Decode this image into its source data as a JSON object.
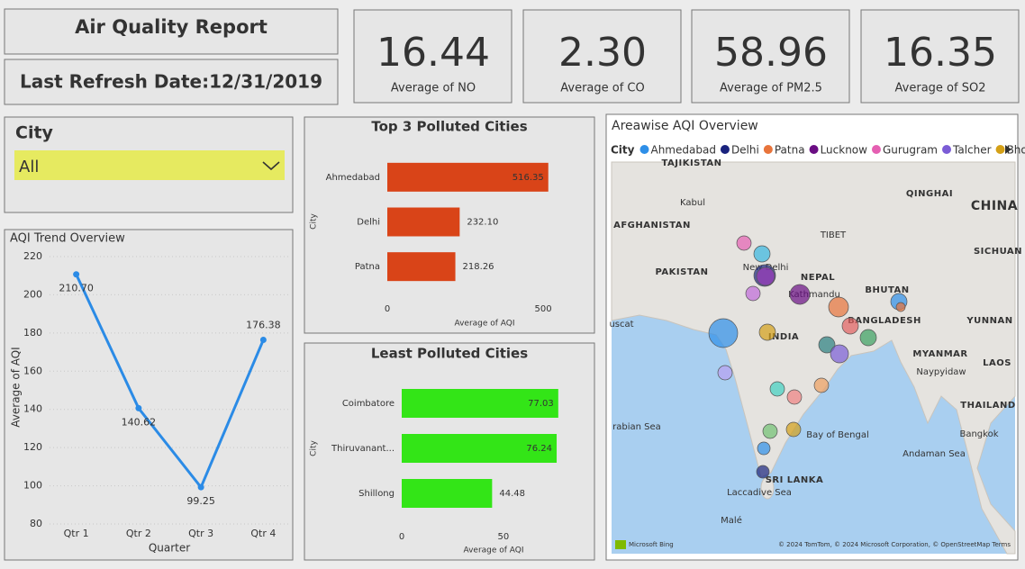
{
  "header": {
    "title": "Air Quality Report",
    "refresh": "Last Refresh Date:12/31/2019"
  },
  "kpis": [
    {
      "value": "16.44",
      "label": "Average of NO"
    },
    {
      "value": "2.30",
      "label": "Average of CO"
    },
    {
      "value": "58.96",
      "label": "Average of PM2.5"
    },
    {
      "value": "16.35",
      "label": "Average of SO2"
    }
  ],
  "slicer": {
    "title": "City",
    "selection": "All"
  },
  "chart_data": [
    {
      "type": "line",
      "title": "AQI Trend Overview",
      "x_label": "Quarter",
      "y_label": "Average of AQI",
      "categories": [
        "Qtr 1",
        "Qtr 2",
        "Qtr 3",
        "Qtr 4"
      ],
      "values": [
        210.7,
        140.62,
        99.25,
        176.38
      ],
      "value_labels": [
        "210.70",
        "140.62",
        "99.25",
        "176.38"
      ],
      "color": "#2b8be6",
      "ylim": [
        80,
        220
      ],
      "yticks": [
        80,
        100,
        120,
        140,
        160,
        180,
        200,
        220
      ],
      "grid": true
    },
    {
      "type": "hbar",
      "title": "Top 3 Polluted Cities",
      "x_label": "Average of AQI",
      "y_label": "City",
      "categories": [
        "Ahmedabad",
        "Delhi",
        "Patna"
      ],
      "values": [
        516.35,
        232.1,
        218.26
      ],
      "value_labels": [
        "516.35",
        "232.10",
        "218.26"
      ],
      "color": "#d94418",
      "xlim": [
        0,
        520
      ],
      "xticks": [
        0,
        500
      ],
      "grid": false
    },
    {
      "type": "hbar",
      "title": "Least Polluted Cities",
      "x_label": "Average of AQI",
      "y_label": "City",
      "categories": [
        "Coimbatore",
        "Thiruvanant...",
        "Shillong"
      ],
      "values": [
        77.03,
        76.24,
        44.48
      ],
      "xlim": [
        0,
        78
      ],
      "xticks": [
        0,
        50
      ],
      "color": "#33e517",
      "grid": false
    }
  ],
  "map": {
    "title": "Areawise AQI Overview",
    "legend_title": "City",
    "legend": [
      {
        "name": "Ahmedabad",
        "color": "#2e8fe8"
      },
      {
        "name": "Delhi",
        "color": "#1a237e"
      },
      {
        "name": "Patna",
        "color": "#e8743b"
      },
      {
        "name": "Lucknow",
        "color": "#6a0d83"
      },
      {
        "name": "Gurugram",
        "color": "#e55fb2"
      },
      {
        "name": "Talcher",
        "color": "#7b5cd6"
      },
      {
        "name": "Bhopal",
        "color": "#d4a017"
      }
    ],
    "places": [
      "TAJIKISTAN",
      "Kabul",
      "AFGHANISTAN",
      "PAKISTAN",
      "New Delhi",
      "NEPAL",
      "Kathmandu",
      "BHUTAN",
      "BANGLADESH",
      "INDIA",
      "MYANMAR",
      "Naypyidaw",
      "LAOS",
      "THAILAND",
      "Bangkok",
      "Bay of Bengal",
      "rabian Sea",
      "SRI LANKA",
      "Laccadive Sea",
      "Malé",
      "QINGHAI",
      "CHINA",
      "TIBET",
      "SICHUAN",
      "YUNNAN",
      "Andaman Sea",
      "uscat"
    ],
    "brand": "Microsoft Bing",
    "credits": "© 2024 TomTom, © 2024 Microsoft Corporation, © OpenStreetMap Terms"
  }
}
